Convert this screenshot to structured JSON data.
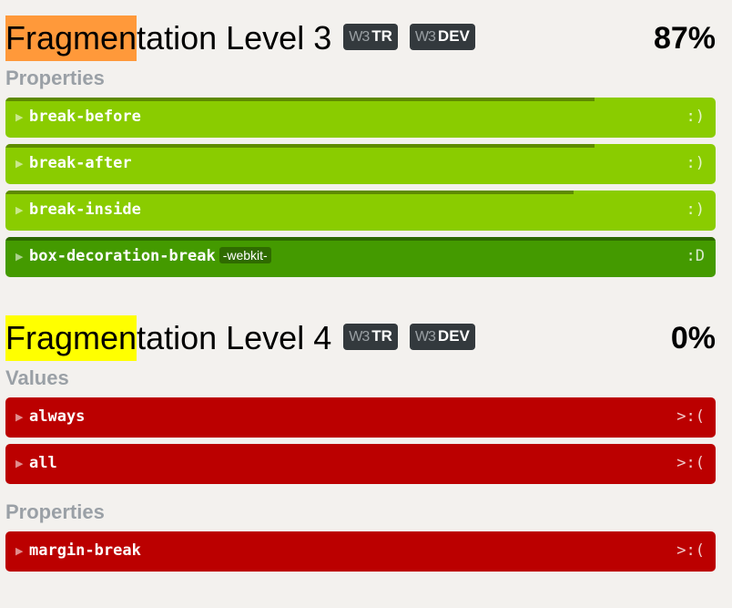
{
  "sections": [
    {
      "title_highlight": "Fragmen",
      "title_rest": "tation Level 3",
      "highlight_color": "#ff993a",
      "badges": [
        {
          "logo": "W3",
          "label": "TR"
        },
        {
          "logo": "W3",
          "label": "DEV"
        }
      ],
      "score": "87%",
      "groups": [
        {
          "label": "Properties",
          "items": [
            {
              "name": "break-before",
              "face": ":)",
              "progress": 0.83,
              "status": "partial"
            },
            {
              "name": "break-after",
              "face": ":)",
              "progress": 0.83,
              "status": "partial"
            },
            {
              "name": "break-inside",
              "face": ":)",
              "progress": 0.8,
              "status": "partial"
            },
            {
              "name": "box-decoration-break",
              "prefix": "-webkit-",
              "face": ":D",
              "progress": 1,
              "status": "pass"
            }
          ]
        }
      ]
    },
    {
      "title_highlight": "Fragmen",
      "title_rest": "tation Level 4",
      "highlight_color": "#ffff00",
      "badges": [
        {
          "logo": "W3",
          "label": "TR"
        },
        {
          "logo": "W3",
          "label": "DEV"
        }
      ],
      "score": "0%",
      "groups": [
        {
          "label": "Values",
          "items": [
            {
              "name": "always",
              "face": ">:(",
              "progress": 0,
              "status": "fail"
            },
            {
              "name": "all",
              "face": ">:(",
              "progress": 0,
              "status": "fail"
            }
          ]
        },
        {
          "label": "Properties",
          "items": [
            {
              "name": "margin-break",
              "face": ">:(",
              "progress": 0,
              "status": "fail"
            }
          ]
        }
      ]
    }
  ],
  "icons": {
    "expand": "triangle-right-icon",
    "arrow_glyph": "▶"
  },
  "colors": {
    "pass": "#449a00",
    "partial": "#8acc00",
    "fail": "#bb0000"
  }
}
